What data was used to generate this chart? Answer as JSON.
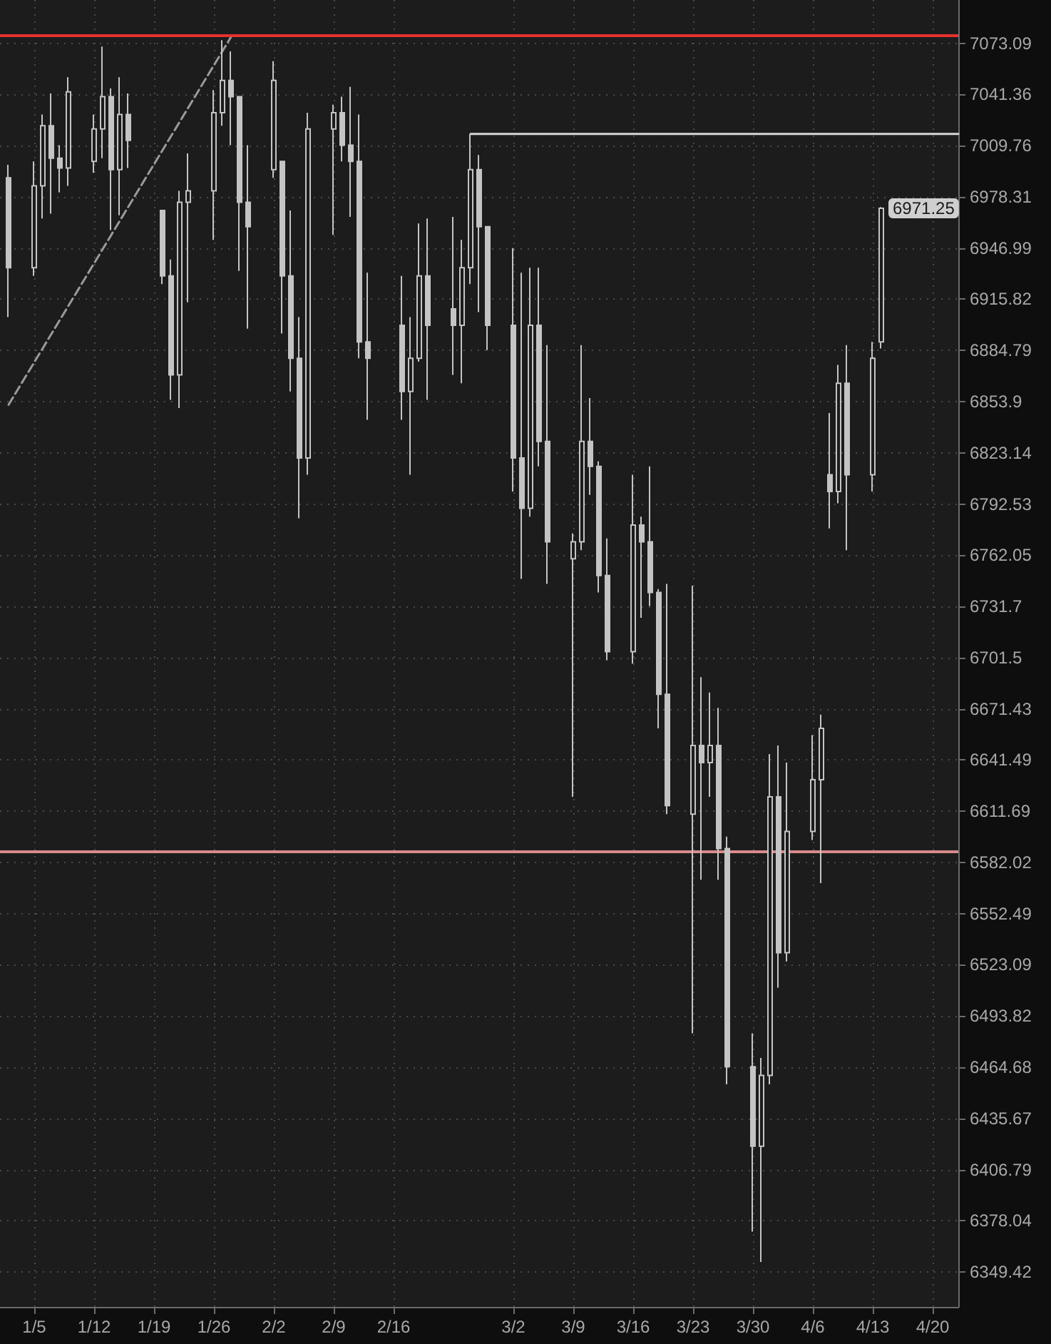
{
  "chart_data": {
    "type": "candlestick",
    "color": "#c4c4c4",
    "x": [
      "--01-02",
      "--01-05",
      "--01-06",
      "--01-07",
      "--01-08",
      "--01-09",
      "--01-12",
      "--01-13",
      "--01-14",
      "--01-15",
      "--01-16",
      "--01-20",
      "--01-21",
      "--01-22",
      "--01-23",
      "--01-26",
      "--01-27",
      "--01-28",
      "--01-29",
      "--01-30",
      "--02-02",
      "--02-03",
      "--02-04",
      "--02-05",
      "--02-06",
      "--02-09",
      "--02-10",
      "--02-11",
      "--02-12",
      "--02-13",
      "--02-17",
      "--02-18",
      "--02-19",
      "--02-20",
      "--02-23",
      "--02-24",
      "--02-25",
      "--02-26",
      "--02-27",
      "--03-02",
      "--03-03",
      "--03-04",
      "--03-05",
      "--03-06",
      "--03-09",
      "--03-10",
      "--03-11",
      "--03-12",
      "--03-13",
      "--03-16",
      "--03-17",
      "--03-18",
      "--03-19",
      "--03-20",
      "--03-23",
      "--03-24",
      "--03-25",
      "--03-26",
      "--03-27",
      "--03-30",
      "--03-31",
      "--04-01",
      "--04-02",
      "--04-03",
      "--04-06",
      "--04-07",
      "--04-08",
      "--04-09",
      "--04-10",
      "--04-13",
      "--04-14"
    ],
    "ohlc": [
      [
        6990,
        6998,
        6905,
        6935
      ],
      [
        6935,
        7000,
        6930,
        6985
      ],
      [
        6985,
        7029,
        6965,
        7022
      ],
      [
        7022,
        7042,
        6968,
        7002
      ],
      [
        7002,
        7010,
        6981,
        6996
      ],
      [
        6996,
        7052,
        6985,
        7043
      ],
      [
        7000,
        7029,
        6993,
        7020
      ],
      [
        7020,
        7071,
        7002,
        7040
      ],
      [
        7040,
        7045,
        6958,
        6995
      ],
      [
        6995,
        7052,
        6967,
        7029
      ],
      [
        7029,
        7042,
        6996,
        7013
      ],
      [
        6970,
        6970,
        6925,
        6930
      ],
      [
        6930,
        6940,
        6855,
        6870
      ],
      [
        6870,
        6982,
        6850,
        6975
      ],
      [
        6975,
        7005,
        6914,
        6982
      ],
      [
        6982,
        7044,
        6952,
        7030
      ],
      [
        7030,
        7075,
        7022,
        7050
      ],
      [
        7050,
        7068,
        7010,
        7040
      ],
      [
        7040,
        7040,
        6933,
        6975
      ],
      [
        6975,
        7010,
        6898,
        6960
      ],
      [
        6995,
        7062,
        6990,
        7050
      ],
      [
        7000,
        7000,
        6895,
        6930
      ],
      [
        6930,
        6970,
        6860,
        6880
      ],
      [
        6880,
        6905,
        6784,
        6820
      ],
      [
        6820,
        7030,
        6810,
        7020
      ],
      [
        7020,
        7035,
        6955,
        7030
      ],
      [
        7030,
        7040,
        7000,
        7010
      ],
      [
        7010,
        7046,
        6966,
        7000
      ],
      [
        7000,
        7029,
        6880,
        6890
      ],
      [
        6890,
        6932,
        6843,
        6880
      ],
      [
        6900,
        6930,
        6843,
        6860
      ],
      [
        6860,
        6905,
        6810,
        6880
      ],
      [
        6880,
        6962,
        6878,
        6930
      ],
      [
        6930,
        6965,
        6855,
        6900
      ],
      [
        6910,
        6966,
        6870,
        6900
      ],
      [
        6900,
        6952,
        6865,
        6935
      ],
      [
        6935,
        7017,
        6925,
        6995
      ],
      [
        6995,
        7004,
        6908,
        6960
      ],
      [
        6960,
        6960,
        6885,
        6900
      ],
      [
        6900,
        6947,
        6800,
        6820
      ],
      [
        6820,
        6932,
        6748,
        6790
      ],
      [
        6790,
        6935,
        6785,
        6900
      ],
      [
        6900,
        6935,
        6815,
        6830
      ],
      [
        6830,
        6888,
        6745,
        6770
      ],
      [
        6760,
        6775,
        6620,
        6770
      ],
      [
        6770,
        6888,
        6765,
        6830
      ],
      [
        6830,
        6856,
        6798,
        6815
      ],
      [
        6815,
        6818,
        6740,
        6750
      ],
      [
        6750,
        6772,
        6700,
        6705
      ],
      [
        6705,
        6810,
        6698,
        6780
      ],
      [
        6780,
        6785,
        6725,
        6770
      ],
      [
        6770,
        6815,
        6732,
        6740
      ],
      [
        6740,
        6742,
        6660,
        6680
      ],
      [
        6680,
        6745,
        6610,
        6615
      ],
      [
        6610,
        6744,
        6484,
        6650
      ],
      [
        6650,
        6690,
        6572,
        6640
      ],
      [
        6640,
        6681,
        6620,
        6650
      ],
      [
        6650,
        6672,
        6572,
        6590
      ],
      [
        6590,
        6597,
        6455,
        6465
      ],
      [
        6465,
        6484,
        6372,
        6420
      ],
      [
        6420,
        6470,
        6355,
        6460
      ],
      [
        6460,
        6645,
        6455,
        6620
      ],
      [
        6620,
        6650,
        6510,
        6530
      ],
      [
        6530,
        6640,
        6525,
        6600
      ],
      [
        6600,
        6656,
        6595,
        6630
      ],
      [
        6630,
        6668,
        6570,
        6660
      ],
      [
        6810,
        6847,
        6778,
        6800
      ],
      [
        6800,
        6876,
        6793,
        6865
      ],
      [
        6865,
        6888,
        6765,
        6810
      ],
      [
        6810,
        6890,
        6800,
        6880
      ],
      [
        6890,
        6972,
        6886,
        6971.25
      ]
    ],
    "series": [
      {
        "type": "line",
        "x": [
          "--01-02",
          "--01-28"
        ],
        "values": [
          6852,
          7077
        ],
        "color": "#9a9a9a",
        "line_style": "dashed"
      },
      {
        "type": "line",
        "x": [
          "--02-25",
          "--04-23"
        ],
        "values": [
          7017,
          7017
        ],
        "color": "#d6d6d6",
        "line_style": "solid"
      }
    ],
    "ref_lines": [
      {
        "axis": "y",
        "value": 7078,
        "color": "#e8302c"
      },
      {
        "axis": "y",
        "value": 6588,
        "color": "#d98a8a"
      }
    ],
    "annotations": [
      {
        "text": "6971.25",
        "x": "--04-14",
        "y": 6971.25
      }
    ],
    "xlim": [
      "--01-01",
      "--04-23"
    ],
    "xticks": [
      {
        "value": "--01-05",
        "label": "1/5"
      },
      {
        "value": "--01-12",
        "label": "1/12"
      },
      {
        "value": "--01-19",
        "label": "1/19"
      },
      {
        "value": "--01-26",
        "label": "1/26"
      },
      {
        "value": "--02-02",
        "label": "2/2"
      },
      {
        "value": "--02-09",
        "label": "2/9"
      },
      {
        "value": "--02-16",
        "label": "2/16"
      },
      {
        "value": "--03-02",
        "label": "3/2"
      },
      {
        "value": "--03-09",
        "label": "3/9"
      },
      {
        "value": "--03-16",
        "label": "3/16"
      },
      {
        "value": "--03-23",
        "label": "3/23"
      },
      {
        "value": "--03-30",
        "label": "3/30"
      },
      {
        "value": "--04-06",
        "label": "4/6"
      },
      {
        "value": "--04-13",
        "label": "4/13"
      },
      {
        "value": "--04-20",
        "label": "4/20"
      }
    ],
    "ylim": [
      6330,
      7100
    ],
    "yticks": [
      6349.42,
      6378.04,
      6406.79,
      6435.67,
      6464.68,
      6493.82,
      6523.09,
      6552.49,
      6582.02,
      6611.69,
      6641.49,
      6671.43,
      6701.5,
      6731.7,
      6762.05,
      6792.53,
      6823.14,
      6853.9,
      6884.79,
      6915.82,
      6946.99,
      6978.31,
      7009.76,
      7041.36,
      7073.09
    ],
    "log": true,
    "grid": true
  }
}
